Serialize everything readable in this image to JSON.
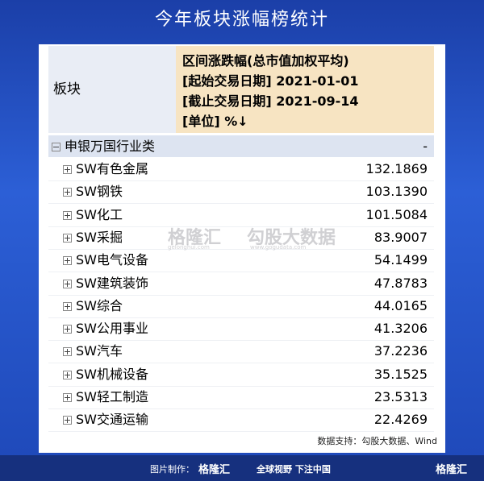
{
  "header": {
    "title": "今年板块涨幅榜统计"
  },
  "table": {
    "columns": [
      "板块",
      [
        "区间涨跌幅(总市值加权平均)",
        "[起始交易日期] 2021-01-01",
        "[截止交易日期] 2021-09-14",
        "[单位] %↓"
      ]
    ],
    "group": {
      "label": "申银万国行业类",
      "value": "-"
    },
    "rows": [
      [
        "SW有色金属",
        "132.1869"
      ],
      [
        "SW钢铁",
        "103.1390"
      ],
      [
        "SW化工",
        "101.5084"
      ],
      [
        "SW采掘",
        "83.9007"
      ],
      [
        "SW电气设备",
        "54.1499"
      ],
      [
        "SW建筑装饰",
        "47.8783"
      ],
      [
        "SW综合",
        "44.0165"
      ],
      [
        "SW公用事业",
        "41.3206"
      ],
      [
        "SW汽车",
        "37.2236"
      ],
      [
        "SW机械设备",
        "35.1525"
      ],
      [
        "SW轻工制造",
        "23.5313"
      ],
      [
        "SW交通运输",
        "22.4269"
      ]
    ]
  },
  "watermark": {
    "brand": "格隆汇",
    "brand_url": "gelonghui.com",
    "partner": "勾股大数据",
    "partner_url": "www.gogudata.com"
  },
  "source": "数据支持：勾股大数据、Wind",
  "footer": {
    "made_by": "图片制作：",
    "brand": "格隆汇",
    "slogan": "全球视野 下注中国",
    "logo": "格隆汇"
  }
}
